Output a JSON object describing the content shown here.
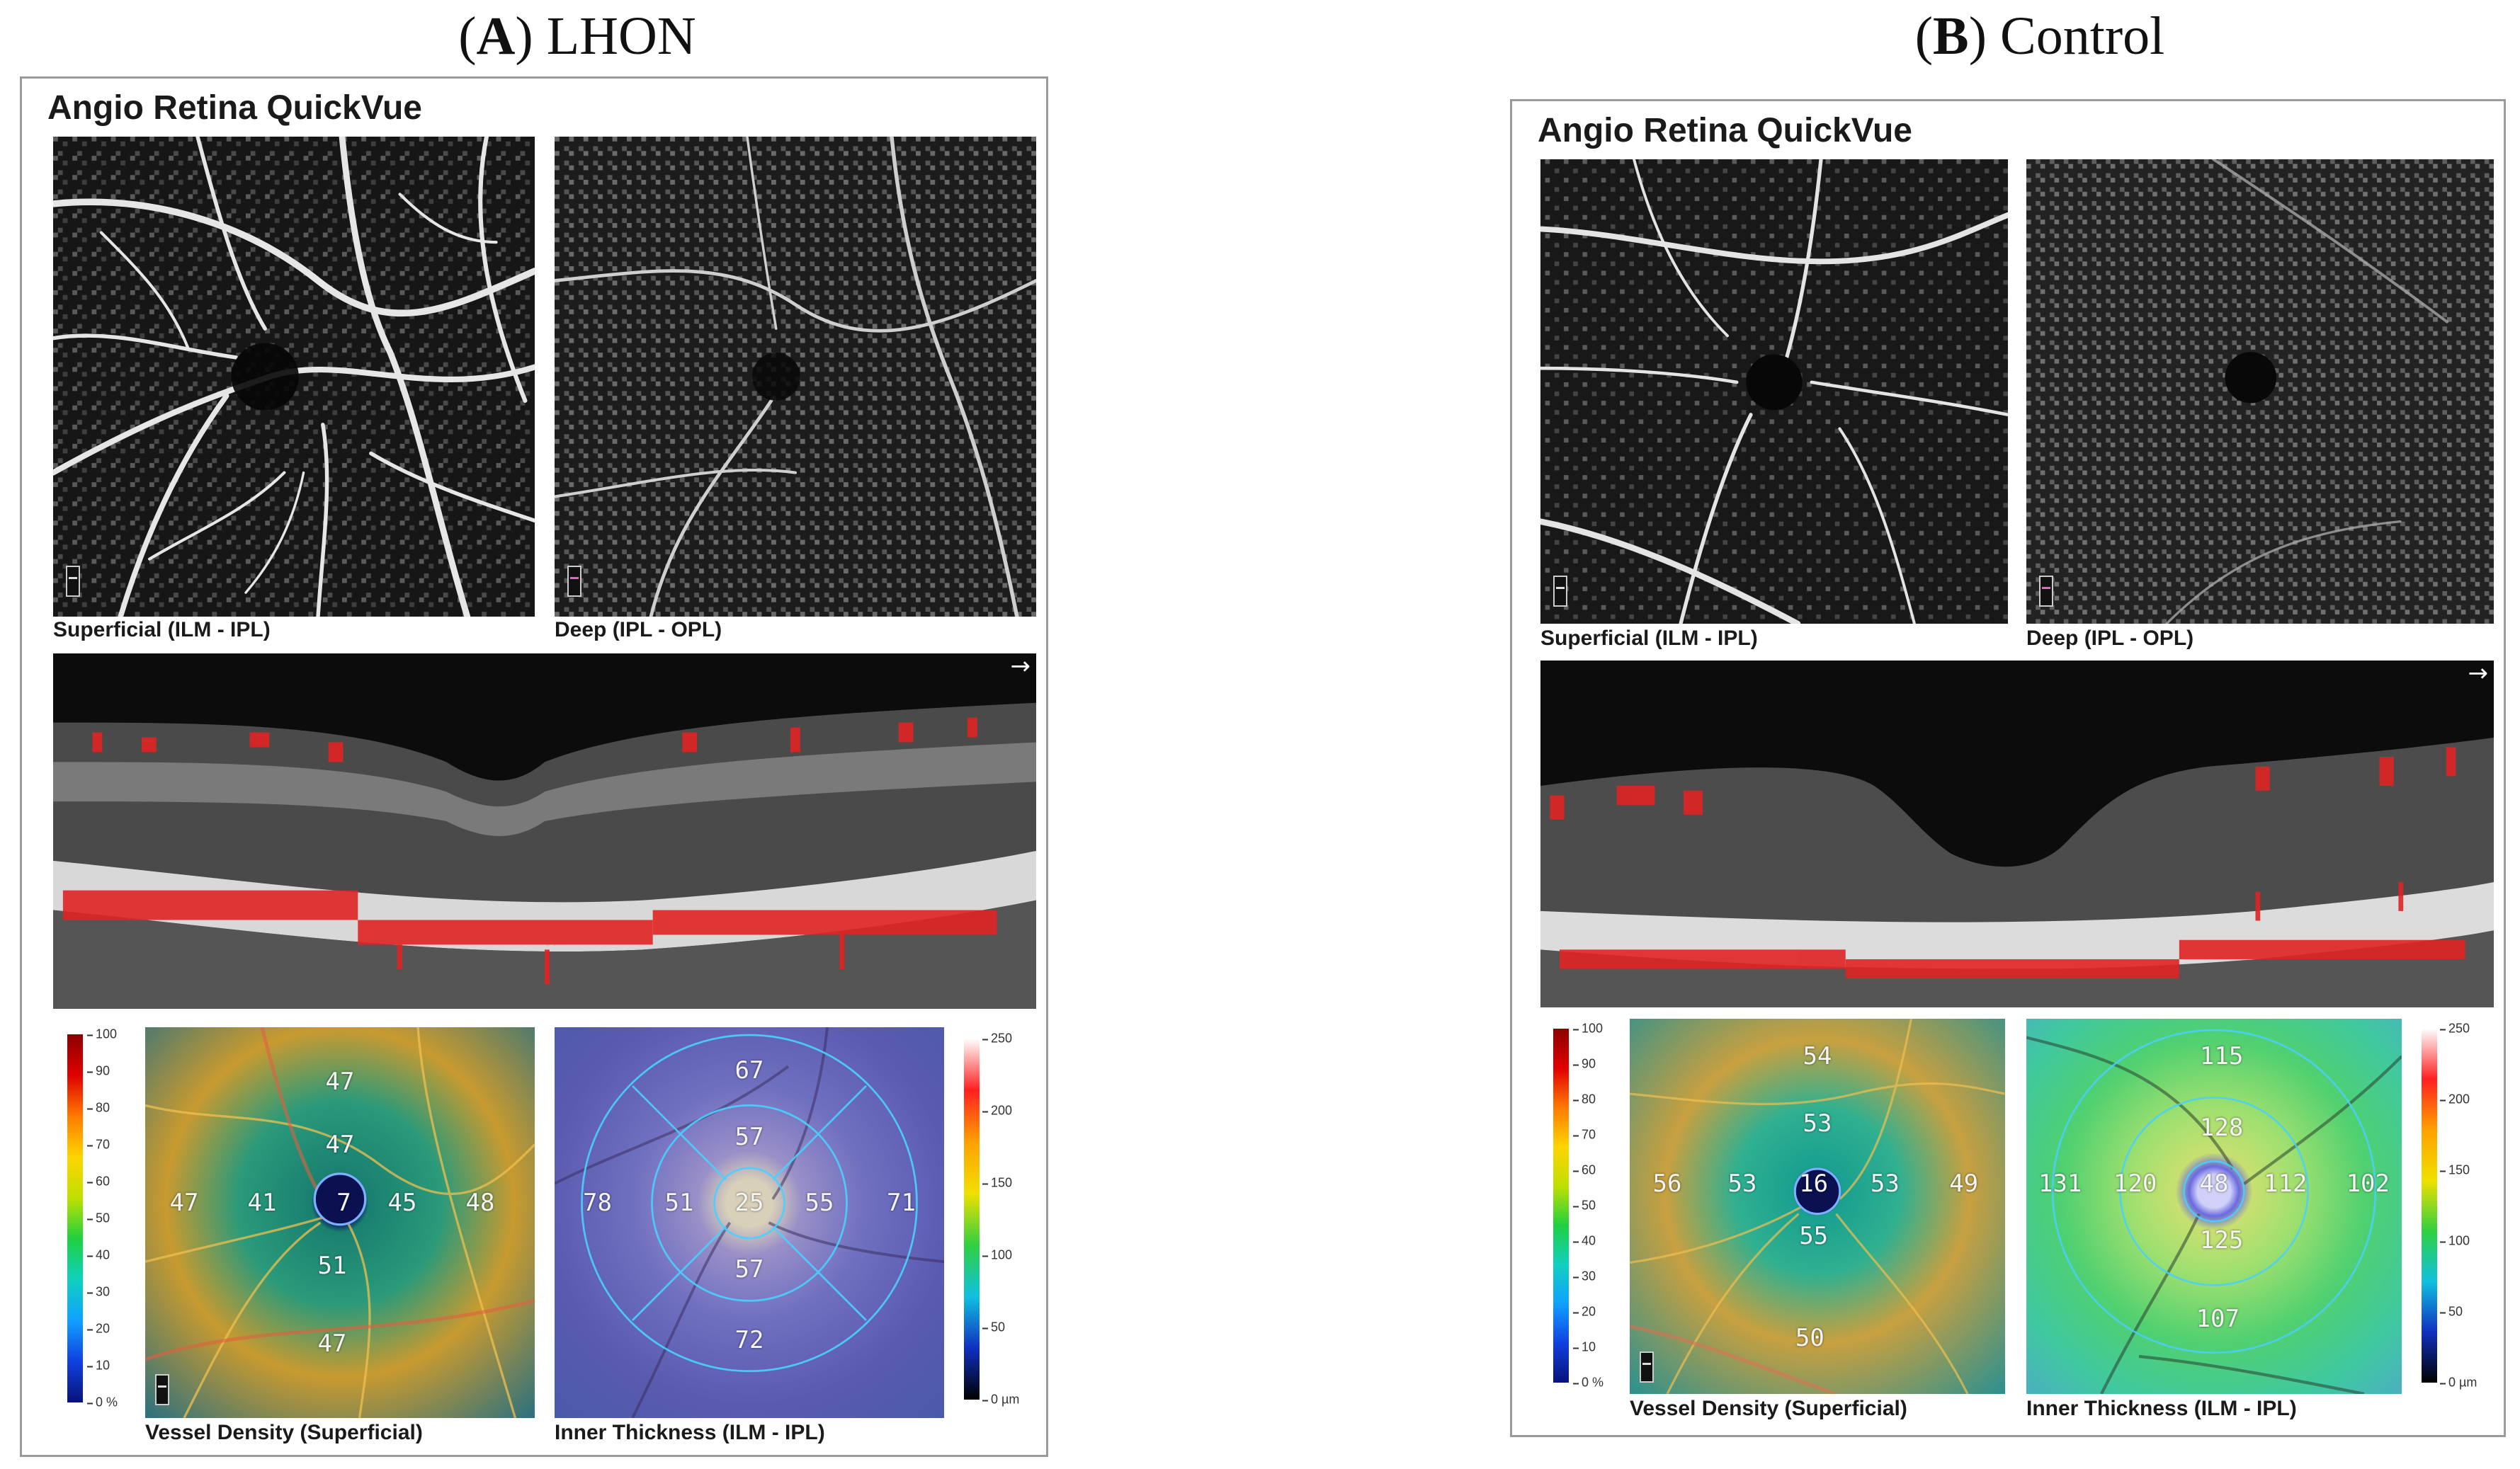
{
  "figure": {
    "panel_a": {
      "label_letter": "A",
      "label_text": "LHON",
      "heading": "Angio Retina QuickVue",
      "superficial_caption": "Superficial (ILM - IPL)",
      "deep_caption": "Deep (IPL - OPL)",
      "vd_caption": "Vessel Density (Superficial)",
      "thickness_caption": "Inner Thickness (ILM - IPL)",
      "vd_values": {
        "sup_outer": "47",
        "sup_inner": "47",
        "nas_outer": "47",
        "nas_inner": "41",
        "center": "7",
        "temp_inner": "45",
        "temp_outer": "48",
        "inf_inner": "51",
        "inf_outer": "47"
      },
      "thickness_values": {
        "sup_outer": "67",
        "sup_inner": "57",
        "nas_outer": "78",
        "nas_inner": "51",
        "center": "25",
        "temp_inner": "55",
        "temp_outer": "71",
        "inf_inner": "57",
        "inf_outer": "72"
      }
    },
    "panel_b": {
      "label_letter": "B",
      "label_text": "Control",
      "heading": "Angio Retina QuickVue",
      "superficial_caption": "Superficial (ILM - IPL)",
      "deep_caption": "Deep (IPL - OPL)",
      "vd_caption": "Vessel Density (Superficial)",
      "thickness_caption": "Inner Thickness (ILM - IPL)",
      "vd_values": {
        "sup_outer": "54",
        "sup_inner": "53",
        "nas_outer": "56",
        "nas_inner": "53",
        "center": "16",
        "temp_inner": "53",
        "temp_outer": "49",
        "inf_inner": "55",
        "inf_outer": "50"
      },
      "thickness_values": {
        "sup_outer": "115",
        "sup_inner": "128",
        "nas_outer": "131",
        "nas_inner": "120",
        "center": "48",
        "temp_inner": "112",
        "temp_outer": "102",
        "inf_inner": "125",
        "inf_outer": "107"
      }
    },
    "vd_scale_ticks": [
      "100",
      "90",
      "80",
      "70",
      "60",
      "50",
      "40",
      "30",
      "20",
      "10",
      "0 %"
    ],
    "thickness_scale_ticks": [
      "250",
      "200",
      "150",
      "100",
      "50",
      "0 µm"
    ],
    "colors": {
      "flow_red": "#e02424",
      "vd_low": "#08127a",
      "vd_high": "#8b0000",
      "thick_low": "#000000",
      "thick_high": "#ffffff"
    }
  }
}
